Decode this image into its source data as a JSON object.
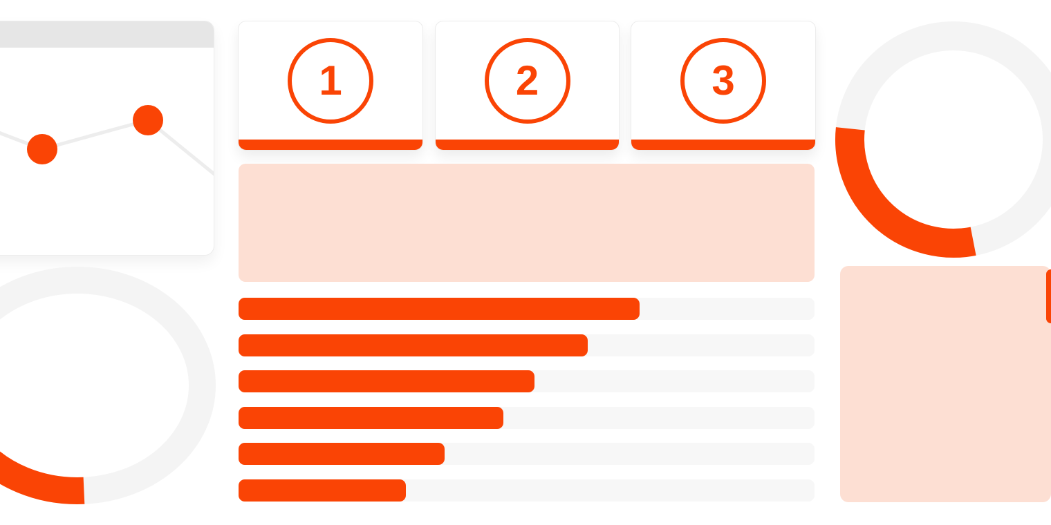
{
  "colors": {
    "accent": "#FA4405",
    "pink": "#FDDFD3",
    "bar_track": "#F7F7F7",
    "ring_gray": "#F4F4F4",
    "card_header_gray": "#E6E6E6",
    "line_gray": "#EDEDED",
    "card_border": "#ECECEC",
    "background": "#FFFFFF"
  },
  "step_cards": [
    {
      "label": "1"
    },
    {
      "label": "2"
    },
    {
      "label": "3"
    }
  ],
  "chart_data": [
    {
      "id": "line-chart-card",
      "type": "line",
      "points": [
        [
          0,
          106
        ],
        [
          46,
          124
        ],
        [
          106,
          147
        ],
        [
          211,
          118
        ],
        [
          259,
          105
        ],
        [
          356,
          184
        ]
      ],
      "markers": [
        [
          106,
          147
        ],
        [
          259,
          105
        ]
      ],
      "marker_radius": 22,
      "title": "",
      "xlabel": "",
      "ylabel": ""
    },
    {
      "id": "horizontal-bars",
      "type": "bar",
      "orientation": "horizontal",
      "categories": [
        "row-1",
        "row-2",
        "row-3",
        "row-4",
        "row-5",
        "row-6"
      ],
      "values_pct": [
        69.6,
        60.6,
        51.4,
        46.0,
        35.8,
        29.1
      ],
      "title": "",
      "xlabel": "",
      "ylabel": ""
    },
    {
      "id": "donut-top-right",
      "type": "donut",
      "filled_pct": 29.6,
      "arc_start_deg": 186,
      "arc_end_deg": 79
    },
    {
      "id": "donut-bottom-left",
      "type": "donut",
      "filled_pct": 16.1,
      "arc_start_deg": 145,
      "arc_end_deg": 87
    }
  ]
}
